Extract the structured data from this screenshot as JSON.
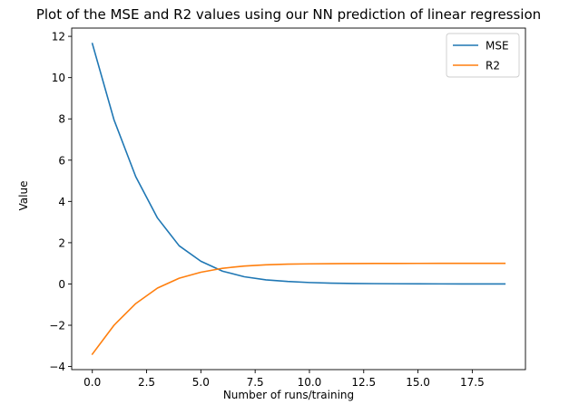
{
  "chart_data": {
    "type": "line",
    "title": "Plot of the MSE and R2 values using our NN prediction of linear regression",
    "xlabel": "Number of runs/training",
    "ylabel": "Value",
    "xlim": [
      -0.95,
      19.95
    ],
    "ylim": [
      -4.15,
      12.4
    ],
    "x": [
      0,
      1,
      2,
      3,
      4,
      5,
      6,
      7,
      8,
      9,
      10,
      11,
      12,
      13,
      14,
      15,
      16,
      17,
      18,
      19
    ],
    "xticks": [
      0.0,
      2.5,
      5.0,
      7.5,
      10.0,
      12.5,
      15.0,
      17.5
    ],
    "xtick_labels": [
      "0.0",
      "2.5",
      "5.0",
      "7.5",
      "10.0",
      "12.5",
      "15.0",
      "17.5"
    ],
    "yticks": [
      -4,
      -2,
      0,
      2,
      4,
      6,
      8,
      10,
      12
    ],
    "ytick_labels": [
      "−4",
      "−2",
      "0",
      "2",
      "4",
      "6",
      "8",
      "10",
      "12"
    ],
    "grid": false,
    "legend_position": "top-right",
    "series": [
      {
        "name": "MSE",
        "color": "#1f77b4",
        "values": [
          11.65,
          7.95,
          5.2,
          3.2,
          1.85,
          1.1,
          0.62,
          0.35,
          0.2,
          0.12,
          0.07,
          0.04,
          0.025,
          0.015,
          0.01,
          0.006,
          0.004,
          0.002,
          0.001,
          0.0
        ]
      },
      {
        "name": "R2",
        "color": "#ff7f0e",
        "values": [
          -3.4,
          -2.0,
          -0.95,
          -0.2,
          0.28,
          0.57,
          0.76,
          0.87,
          0.93,
          0.96,
          0.975,
          0.985,
          0.99,
          0.993,
          0.995,
          0.997,
          0.998,
          0.999,
          0.999,
          1.0
        ]
      }
    ]
  }
}
